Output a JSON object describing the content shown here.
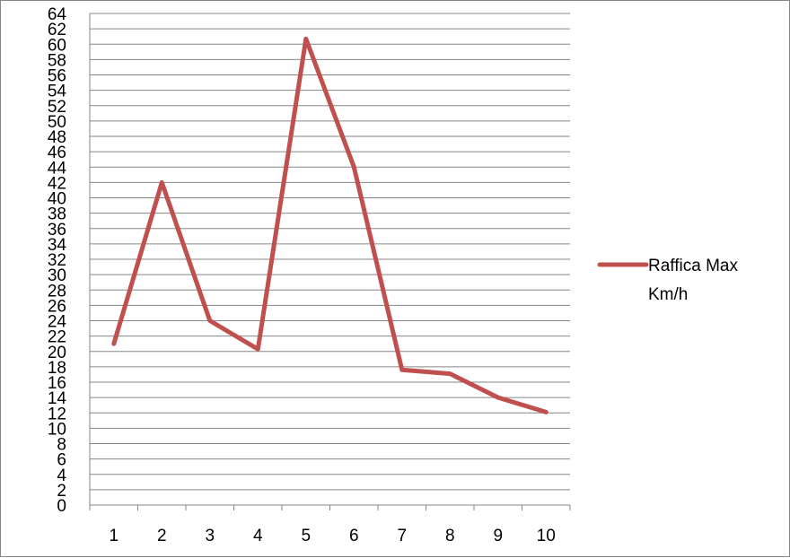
{
  "chart_data": {
    "type": "line",
    "title": "",
    "xlabel": "",
    "ylabel": "",
    "categories": [
      "1",
      "2",
      "3",
      "4",
      "5",
      "6",
      "7",
      "8",
      "9",
      "10"
    ],
    "series": [
      {
        "name": "Raffica Max Km/h",
        "legend_lines": [
          "Raffica Max",
          "Km/h"
        ],
        "color": "#C0504D",
        "values": [
          21,
          42,
          24,
          20.3,
          60.7,
          44,
          17.6,
          17.1,
          14,
          12.1
        ]
      }
    ],
    "ylim": [
      0,
      64
    ],
    "ytick_step": 2,
    "grid": true,
    "legend_position": "right"
  }
}
